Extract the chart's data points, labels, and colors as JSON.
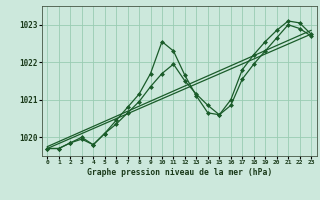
{
  "title": "Graphe pression niveau de la mer (hPa)",
  "bg_color": "#cce8dc",
  "grid_color": "#99ccb3",
  "line_color": "#1a5c2a",
  "marker_color": "#1a5c2a",
  "xlim": [
    -0.5,
    23.5
  ],
  "ylim": [
    1019.5,
    1023.5
  ],
  "yticks": [
    1020,
    1021,
    1022,
    1023
  ],
  "xtick_labels": [
    "0",
    "1",
    "2",
    "3",
    "4",
    "5",
    "6",
    "7",
    "8",
    "9",
    "10",
    "11",
    "12",
    "13",
    "14",
    "15",
    "16",
    "17",
    "18",
    "19",
    "20",
    "21",
    "22",
    "23"
  ],
  "series1_x": [
    0,
    1,
    2,
    3,
    4,
    5,
    6,
    7,
    8,
    9,
    10,
    11,
    12,
    13,
    14,
    15,
    16,
    17,
    18,
    19,
    20,
    21,
    22,
    23
  ],
  "series1_y": [
    1019.7,
    1019.7,
    1019.85,
    1019.95,
    1019.8,
    1020.1,
    1020.45,
    1020.8,
    1021.15,
    1021.7,
    1022.55,
    1022.3,
    1021.65,
    1021.1,
    1020.65,
    1020.6,
    1021.0,
    1021.8,
    1022.2,
    1022.55,
    1022.85,
    1023.1,
    1023.05,
    1022.75
  ],
  "series2_x": [
    0,
    1,
    2,
    3,
    4,
    5,
    6,
    7,
    8,
    9,
    10,
    11,
    12,
    13,
    14,
    15,
    16,
    17,
    18,
    19,
    20,
    21,
    22,
    23
  ],
  "series2_y": [
    1019.7,
    1019.7,
    1019.85,
    1020.0,
    1019.8,
    1020.1,
    1020.35,
    1020.65,
    1020.95,
    1021.35,
    1021.7,
    1021.95,
    1021.5,
    1021.15,
    1020.85,
    1020.6,
    1020.85,
    1021.55,
    1021.95,
    1022.3,
    1022.65,
    1023.0,
    1022.9,
    1022.7
  ],
  "trend1_x": [
    0,
    23
  ],
  "trend1_y": [
    1019.7,
    1022.75
  ],
  "trend2_x": [
    0,
    23
  ],
  "trend2_y": [
    1019.75,
    1022.85
  ]
}
